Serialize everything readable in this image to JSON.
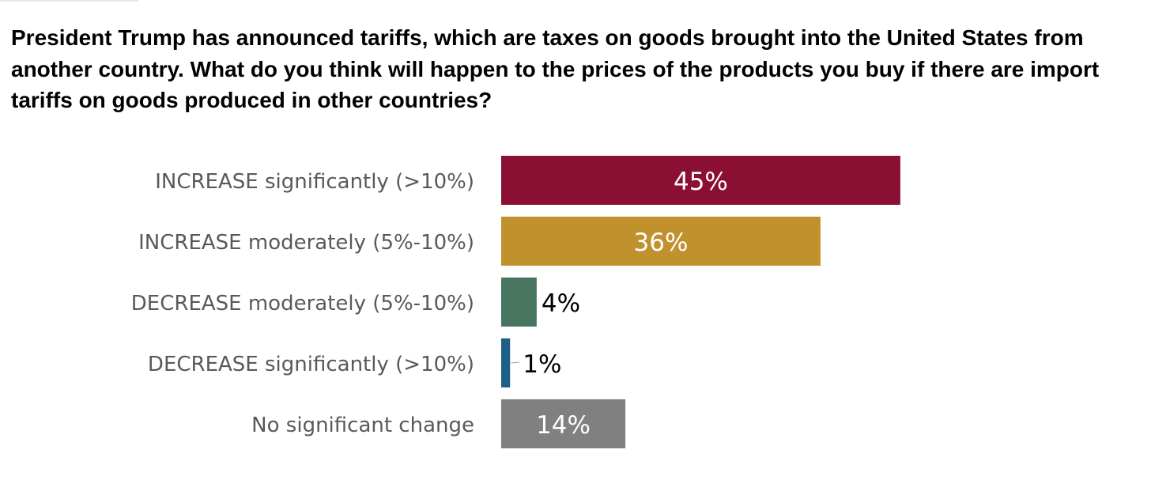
{
  "title": "President Trump has announced tariffs, which are taxes on goods brought into the United States from another country. What do you think will happen to the prices of the products you buy if there are import tariffs on goods produced in other countries?",
  "chart_data": {
    "type": "bar",
    "orientation": "horizontal",
    "title": "President Trump has announced tariffs, which are taxes on goods brought into the United States from another country. What do you think will happen to the prices of the products you buy if there are import tariffs on goods produced in other countries?",
    "xlabel": "",
    "ylabel": "",
    "categories": [
      "INCREASE significantly (>10%)",
      "INCREASE moderately (5%-10%)",
      "DECREASE moderately (5%-10%)",
      "DECREASE significantly (>10%)",
      "No significant change"
    ],
    "values": [
      45,
      36,
      4,
      1,
      14
    ],
    "value_labels": [
      "45%",
      "36%",
      "4%",
      "1%",
      "14%"
    ],
    "colors": [
      "#8b0e33",
      "#c0912d",
      "#477560",
      "#1f5e87",
      "#808080"
    ],
    "value_label_position": [
      "inside",
      "inside",
      "outside",
      "outside",
      "inside"
    ],
    "unit": "%",
    "grid": false,
    "legend": "none"
  }
}
